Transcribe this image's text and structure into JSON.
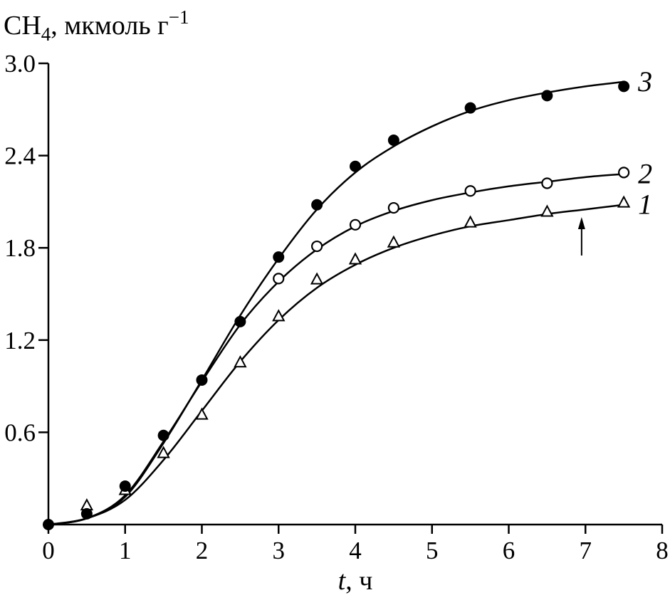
{
  "chart_data": {
    "type": "line",
    "xlabel": {
      "variable": "t",
      "unit": ", ч"
    },
    "ylabel": {
      "species": "CH",
      "subscript": "4",
      "unit": ", мкмоль г",
      "superscript": "−1"
    },
    "xlim": [
      0,
      8
    ],
    "ylim": [
      0,
      3.0
    ],
    "xticks": [
      0,
      1,
      2,
      3,
      4,
      5,
      6,
      7,
      8
    ],
    "xtick_labels": [
      "0",
      "1",
      "2",
      "3",
      "4",
      "5",
      "6",
      "7",
      "8"
    ],
    "yticks": [
      0.6,
      1.2,
      1.8,
      2.4,
      3.0
    ],
    "ytick_labels": [
      "0.6",
      "1.2",
      "1.8",
      "2.4",
      "3.0"
    ],
    "grid": false,
    "legend": "none",
    "color": "#000000",
    "series": [
      {
        "name": "1",
        "marker": "triangle",
        "filled": false,
        "x": [
          0.5,
          1,
          1.5,
          2,
          2.5,
          3,
          3.5,
          4,
          4.5,
          5.5,
          6.5,
          7.5
        ],
        "y": [
          0.12,
          0.22,
          0.46,
          0.71,
          1.05,
          1.35,
          1.59,
          1.72,
          1.83,
          1.96,
          2.03,
          2.09
        ],
        "fit_x": [
          0,
          0.5,
          1,
          1.5,
          2,
          2.5,
          3,
          3.5,
          4,
          4.5,
          5,
          5.5,
          6,
          6.5,
          7,
          7.5
        ],
        "fit_y": [
          0,
          0.04,
          0.16,
          0.42,
          0.74,
          1.06,
          1.33,
          1.54,
          1.69,
          1.8,
          1.88,
          1.94,
          1.98,
          2.02,
          2.05,
          2.08
        ]
      },
      {
        "name": "2",
        "marker": "circle",
        "filled": false,
        "x": [
          3,
          3.5,
          4,
          4.5,
          5.5,
          6.5,
          7.5
        ],
        "y": [
          1.6,
          1.81,
          1.95,
          2.06,
          2.17,
          2.22,
          2.29
        ],
        "fit_x": [
          0,
          0.5,
          1,
          1.5,
          2,
          2.5,
          3,
          3.5,
          4,
          4.5,
          5,
          5.5,
          6,
          6.5,
          7,
          7.5
        ],
        "fit_y": [
          0,
          0.04,
          0.19,
          0.54,
          0.93,
          1.3,
          1.58,
          1.79,
          1.94,
          2.04,
          2.11,
          2.16,
          2.2,
          2.23,
          2.26,
          2.28
        ]
      },
      {
        "name": "3",
        "marker": "circle",
        "filled": true,
        "x": [
          0,
          0.5,
          1,
          1.5,
          2,
          2.5,
          3,
          3.5,
          4,
          4.5,
          5.5,
          6.5,
          7.5
        ],
        "y": [
          0,
          0.07,
          0.25,
          0.58,
          0.94,
          1.32,
          1.74,
          2.08,
          2.33,
          2.5,
          2.71,
          2.79,
          2.85
        ],
        "fit_x": [
          0,
          0.5,
          1,
          1.5,
          2,
          2.5,
          3,
          3.5,
          4,
          4.5,
          5,
          5.5,
          6,
          6.5,
          7,
          7.5
        ],
        "fit_y": [
          0,
          0.04,
          0.18,
          0.53,
          0.94,
          1.36,
          1.73,
          2.05,
          2.29,
          2.46,
          2.59,
          2.69,
          2.76,
          2.81,
          2.85,
          2.88
        ]
      }
    ],
    "arrow": {
      "x": 6.95,
      "y_start": 1.75,
      "y_end": 2.0
    }
  }
}
